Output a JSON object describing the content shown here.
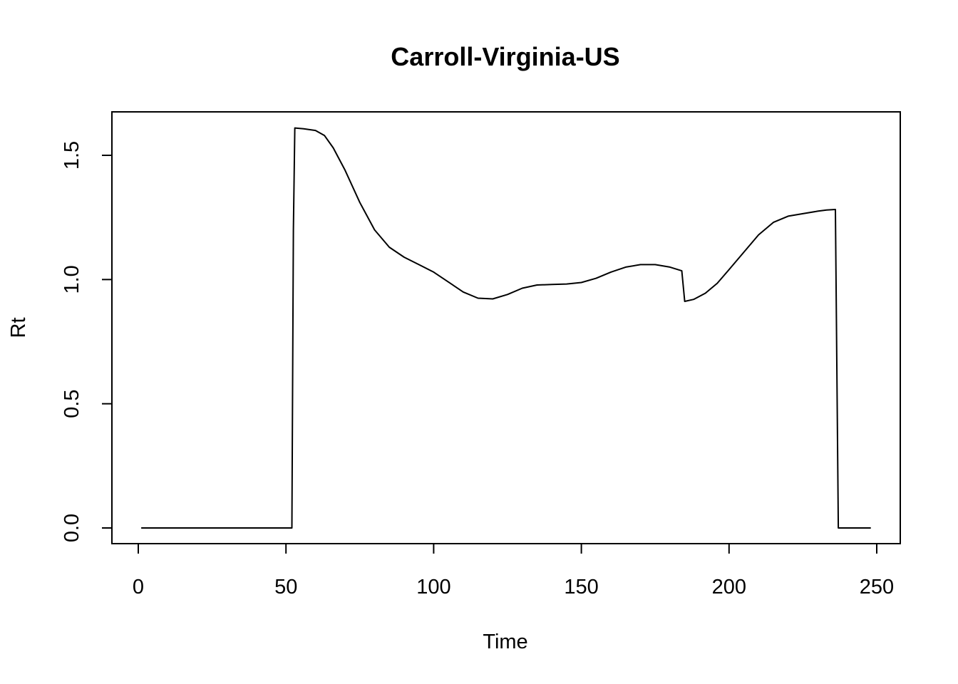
{
  "chart_data": {
    "type": "line",
    "title": "Carroll-Virginia-US",
    "xlabel": "Time",
    "ylabel": "Rt",
    "xlim": [
      0,
      250
    ],
    "ylim": [
      0,
      1.6
    ],
    "xticks": [
      0,
      50,
      100,
      150,
      200,
      250
    ],
    "xtick_labels": [
      "0",
      "50",
      "100",
      "150",
      "200",
      "250"
    ],
    "yticks": [
      0,
      0.5,
      1.0,
      1.5
    ],
    "ytick_labels": [
      "0.0",
      "0.5",
      "1.0",
      "1.5"
    ],
    "grid": false,
    "legend": "none",
    "series": [
      {
        "x": [
          1,
          10,
          20,
          30,
          40,
          50,
          52,
          52.5,
          53,
          56,
          60,
          63,
          66,
          70,
          75,
          80,
          85,
          90,
          95,
          100,
          105,
          110,
          115,
          120,
          125,
          130,
          135,
          140,
          145,
          150,
          155,
          160,
          165,
          170,
          175,
          180,
          184,
          185,
          188,
          192,
          196,
          200,
          205,
          210,
          215,
          220,
          225,
          230,
          233,
          236,
          237,
          240,
          245,
          248
        ],
        "y": [
          0,
          0,
          0,
          0,
          0,
          0,
          0,
          1.2,
          1.61,
          1.607,
          1.6,
          1.58,
          1.53,
          1.44,
          1.31,
          1.2,
          1.13,
          1.09,
          1.06,
          1.03,
          0.99,
          0.95,
          0.925,
          0.922,
          0.94,
          0.965,
          0.978,
          0.98,
          0.982,
          0.988,
          1.005,
          1.03,
          1.05,
          1.06,
          1.06,
          1.05,
          1.035,
          0.912,
          0.92,
          0.945,
          0.985,
          1.04,
          1.11,
          1.18,
          1.23,
          1.255,
          1.265,
          1.275,
          1.28,
          1.282,
          0,
          0,
          0,
          0
        ]
      }
    ]
  }
}
